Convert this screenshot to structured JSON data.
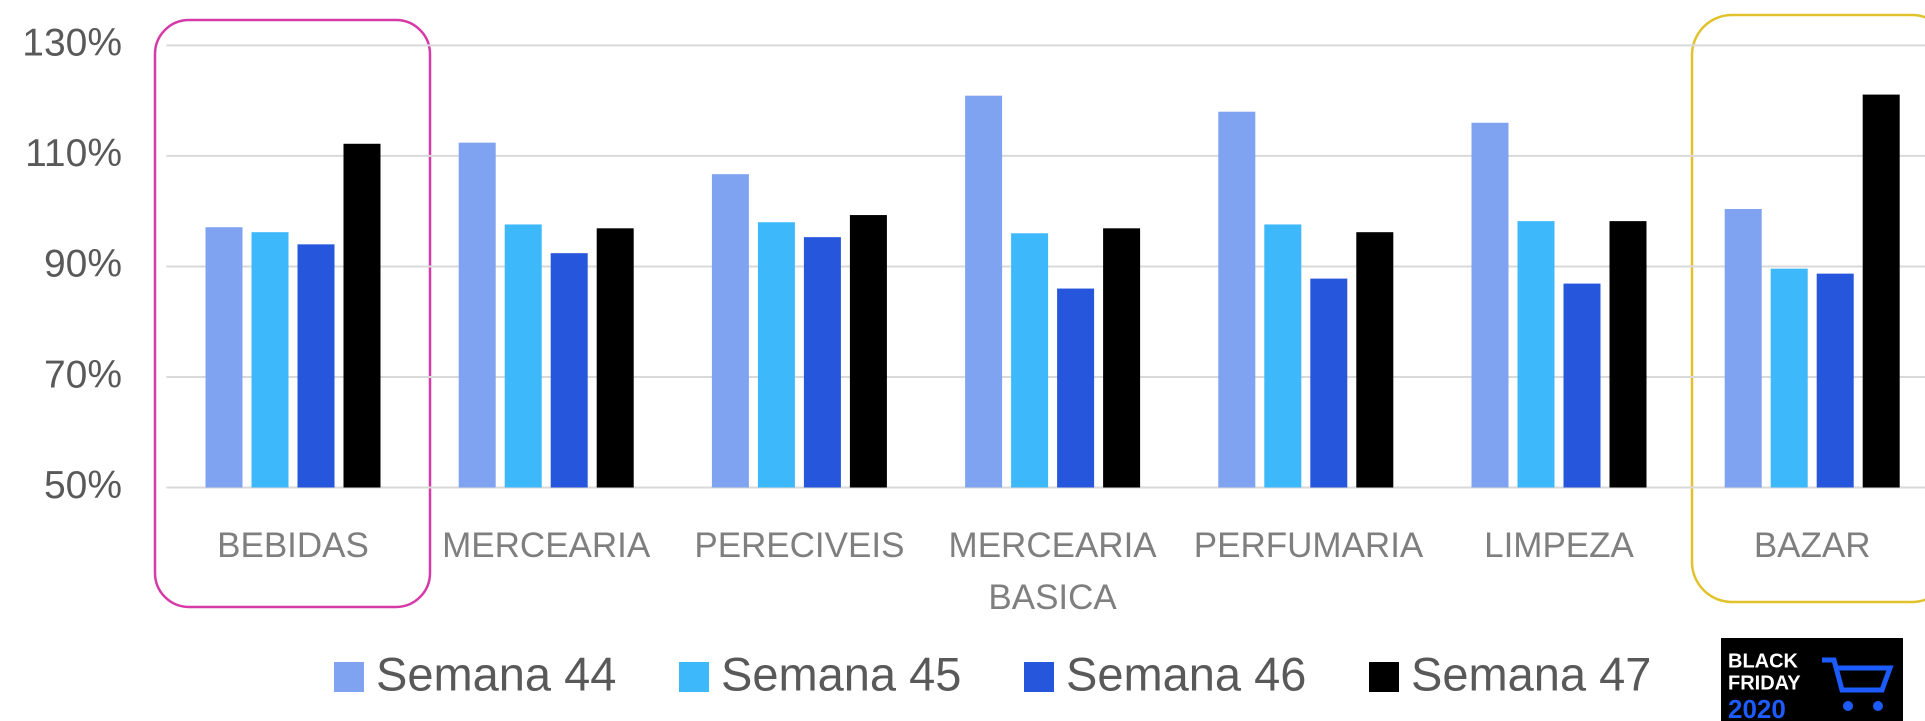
{
  "chart_data": {
    "type": "bar",
    "categories": [
      "BEBIDAS",
      "MERCEARIA",
      "PERECIVEIS",
      "MERCEARIA BASICA",
      "PERFUMARIA",
      "LIMPEZA",
      "BAZAR"
    ],
    "series": [
      {
        "name": "Semana 44",
        "color": "#7fa3f0",
        "values": [
          97.1,
          112.4,
          106.7,
          120.9,
          118,
          116,
          100.4
        ]
      },
      {
        "name": "Semana 45",
        "color": "#3db8fb",
        "values": [
          96.2,
          97.6,
          98,
          96,
          97.6,
          98.2,
          89.6
        ]
      },
      {
        "name": "Semana 46",
        "color": "#2656dc",
        "values": [
          94,
          92.4,
          95.3,
          86,
          87.8,
          86.9,
          88.7
        ]
      },
      {
        "name": "Semana 47",
        "color": "#000000",
        "values": [
          112.2,
          96.9,
          99.3,
          96.9,
          96.2,
          98.2,
          121.1
        ]
      }
    ],
    "ylim": [
      50,
      130
    ],
    "yticks": [
      {
        "value": 50,
        "label": "50%"
      },
      {
        "value": 70,
        "label": "70%"
      },
      {
        "value": 90,
        "label": "90%"
      },
      {
        "value": 110,
        "label": "110%"
      },
      {
        "value": 130,
        "label": "130%"
      }
    ],
    "grid": true
  },
  "badge": {
    "line1": "BLACK",
    "line2": "FRIDAY",
    "line3": "2020"
  }
}
